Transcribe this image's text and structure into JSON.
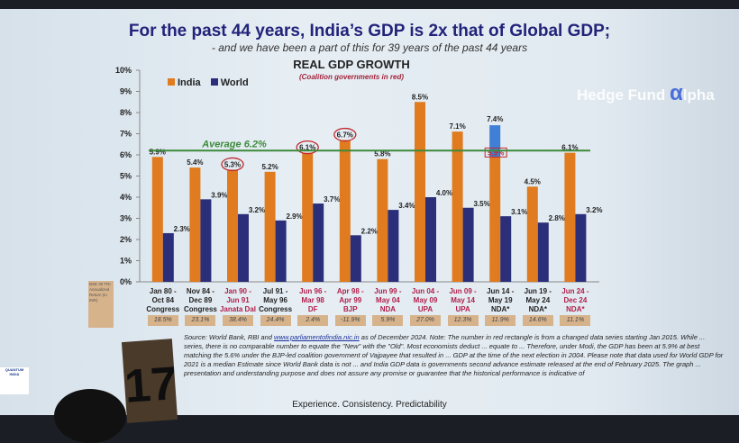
{
  "slide": {
    "title": "For the past 44 years, India’s GDP is 2x that of Global GDP;",
    "subtitle": "- and we have been a part of this for 39 years of the past 44 years",
    "tagline": "Experience. Consistency. Predictability",
    "returns_label": "BSE 30 TRI Annualized Return (in INR)",
    "footnote_source": "Source: World Bank, RBI and ",
    "footnote_link": "www.parliamentofindia.nic.in",
    "footnote_text": " as of December 2024. Note: The number in red rectangle is from a changed data series starting Jan 2015. While ... series, there is no comparable number to equate the \"New\" with the \"Old\". Most economists deduct ... equate to ... Therefore, under Modi, the GDP has been at 5.9% at best matching the 5.6% under the BJP-led coalition government of Vajpayee that resulted in ... GDP at the time of the next election in 2004. Please note that data used for World GDP for 2021 is a median Estimate since World Bank data is not ... and India GDP data is governments second advance estimate released at the end of February 2025. The graph ... presentation and understanding purpose and does not assure any promise or guarantee that the historical performance is indicative of",
    "card_number": "17",
    "watermark": "Hedge Fund",
    "watermark_alpha": "α",
    "watermark_tail": "lpha",
    "logo": "QUANTUM INDIA"
  },
  "chart_data": {
    "type": "bar",
    "title": "REAL GDP GROWTH",
    "subtitle": "(Coalition governments in red)",
    "ylim": [
      0,
      10
    ],
    "yticks": [
      "0%",
      "1%",
      "2%",
      "3%",
      "4%",
      "5%",
      "6%",
      "7%",
      "8%",
      "9%",
      "10%"
    ],
    "legend_position": "top-left",
    "categories": [
      {
        "period": "Jan 80 - Oct 84",
        "party": "Congress",
        "coalition": false,
        "return": "18.5%"
      },
      {
        "period": "Nov 84 - Dec 89",
        "party": "Congress",
        "coalition": false,
        "return": "23.1%"
      },
      {
        "period": "Jan 90 - Jun 91",
        "party": "Janata Dal",
        "coalition": true,
        "return": "38.4%"
      },
      {
        "period": "Jul 91 - May 96",
        "party": "Congress",
        "coalition": false,
        "return": "24.4%"
      },
      {
        "period": "Jun 96 - Mar 98",
        "party": "DF",
        "coalition": true,
        "return": "2.4%"
      },
      {
        "period": "Apr 98 - Apr 99",
        "party": "BJP",
        "coalition": true,
        "return": "-11.9%"
      },
      {
        "period": "Jun 99 - May 04",
        "party": "NDA",
        "coalition": true,
        "return": "5.9%"
      },
      {
        "period": "Jun 04 - May 09",
        "party": "UPA",
        "coalition": true,
        "return": "27.0%"
      },
      {
        "period": "Jun 09 - May 14",
        "party": "UPA",
        "coalition": true,
        "return": "12.3%"
      },
      {
        "period": "Jun 14 - May 19",
        "party": "NDA*",
        "coalition": false,
        "return": "11.9%"
      },
      {
        "period": "Jun 19 - May 24",
        "party": "NDA*",
        "coalition": false,
        "return": "14.6%"
      },
      {
        "period": "Jun 24 - Dec 24",
        "party": "NDA*",
        "coalition": true,
        "return": "11.1%"
      }
    ],
    "series": [
      {
        "name": "India",
        "color": "#e07b1f",
        "values": [
          5.9,
          5.4,
          5.3,
          5.2,
          6.1,
          6.7,
          5.8,
          8.5,
          7.1,
          5.9,
          4.5,
          6.1
        ],
        "labels": [
          "5.9%",
          "5.4%",
          "5.3%",
          "5.2%",
          "6.1%",
          "6.7%",
          "5.8%",
          "8.5%",
          "7.1%",
          "5.9%",
          "4.5%",
          "6.1%"
        ],
        "circled": [
          false,
          false,
          true,
          false,
          true,
          true,
          false,
          false,
          false,
          false,
          false,
          false
        ]
      },
      {
        "name": "World",
        "color": "#2b2e78",
        "values": [
          2.3,
          3.9,
          3.2,
          2.9,
          3.7,
          2.2,
          3.4,
          4.0,
          3.5,
          3.1,
          2.8,
          3.2
        ],
        "labels": [
          "2.3%",
          "3.9%",
          "3.2%",
          "2.9%",
          "3.7%",
          "2.2%",
          "3.4%",
          "4.0%",
          "3.5%",
          "3.1%",
          "2.8%",
          "3.2%"
        ]
      }
    ],
    "new_series": {
      "category_index": 9,
      "value": 7.4,
      "label": "7.4%",
      "color": "#3f7fd6",
      "old_value_boxed": "5.9%"
    },
    "average": {
      "value": 6.2,
      "label": "Average 6.2%",
      "color": "#3d8a3a"
    }
  }
}
